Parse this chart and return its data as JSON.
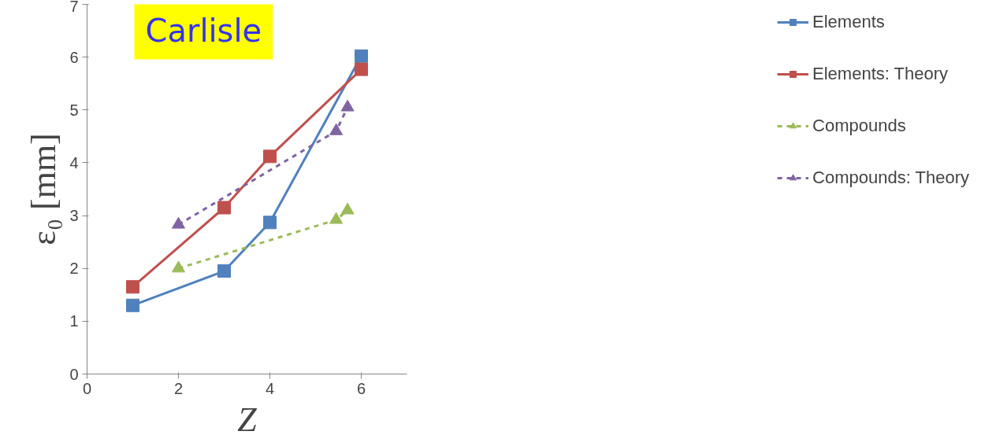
{
  "chart_data": {
    "type": "line",
    "xlabel": "Z",
    "ylabel": "ε₀ [mm]",
    "annotations": [
      "Carlisle"
    ],
    "xlim": [
      0,
      7
    ],
    "ylim": [
      0,
      7
    ],
    "xticks": [
      0,
      2,
      4,
      6
    ],
    "yticks": [
      0,
      1,
      2,
      3,
      4,
      5,
      6,
      7
    ],
    "grid": false,
    "legend": "right",
    "line_style": "solid",
    "series": [
      {
        "name": "Elements",
        "color": "#4f81bd",
        "marker": "square",
        "x": [
          1,
          3,
          4,
          6
        ],
        "values": [
          1.3,
          1.95,
          2.87,
          6.02
        ]
      },
      {
        "name": "Elements: Theory",
        "color": "#c0504d",
        "marker": "square",
        "x": [
          1,
          3,
          4,
          6
        ],
        "values": [
          1.65,
          3.15,
          4.12,
          5.77
        ]
      },
      {
        "name": "Compounds",
        "color": "#9bbb59",
        "marker": "triangle",
        "line_style": "dashed",
        "x": [
          2,
          5.45,
          5.7
        ],
        "values": [
          2.0,
          2.92,
          3.1
        ]
      },
      {
        "name": "Compounds: Theory",
        "color": "#8064a2",
        "marker": "triangle",
        "line_style": "dashed",
        "x": [
          2,
          5.45,
          5.7
        ],
        "values": [
          2.83,
          4.6,
          5.05
        ]
      }
    ]
  }
}
